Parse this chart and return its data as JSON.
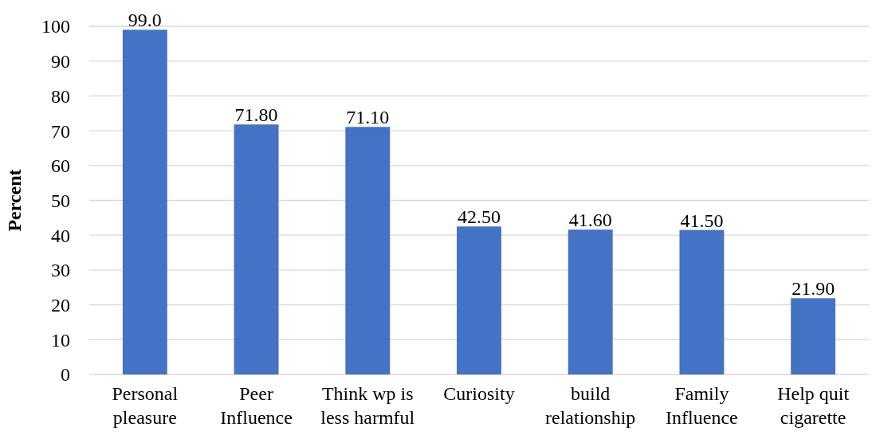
{
  "chart_data": {
    "type": "bar",
    "ylabel": "Percent",
    "categories": [
      "Personal pleasure",
      "Peer Influence",
      "Think wp is less harmful",
      "Curiosity",
      "build relationship",
      "Family Influence",
      "Help quit cigarette"
    ],
    "values": [
      99.0,
      71.8,
      71.1,
      42.5,
      41.6,
      41.5,
      21.9
    ],
    "value_labels": [
      "99.0",
      "71.80",
      "71.10",
      "42.50",
      "41.60",
      "41.50",
      "21.90"
    ],
    "color": "#4472c4",
    "ylim": [
      0,
      100
    ],
    "yticks": [
      0,
      10,
      20,
      30,
      40,
      50,
      60,
      70,
      80,
      90,
      100
    ],
    "grid": "y"
  }
}
